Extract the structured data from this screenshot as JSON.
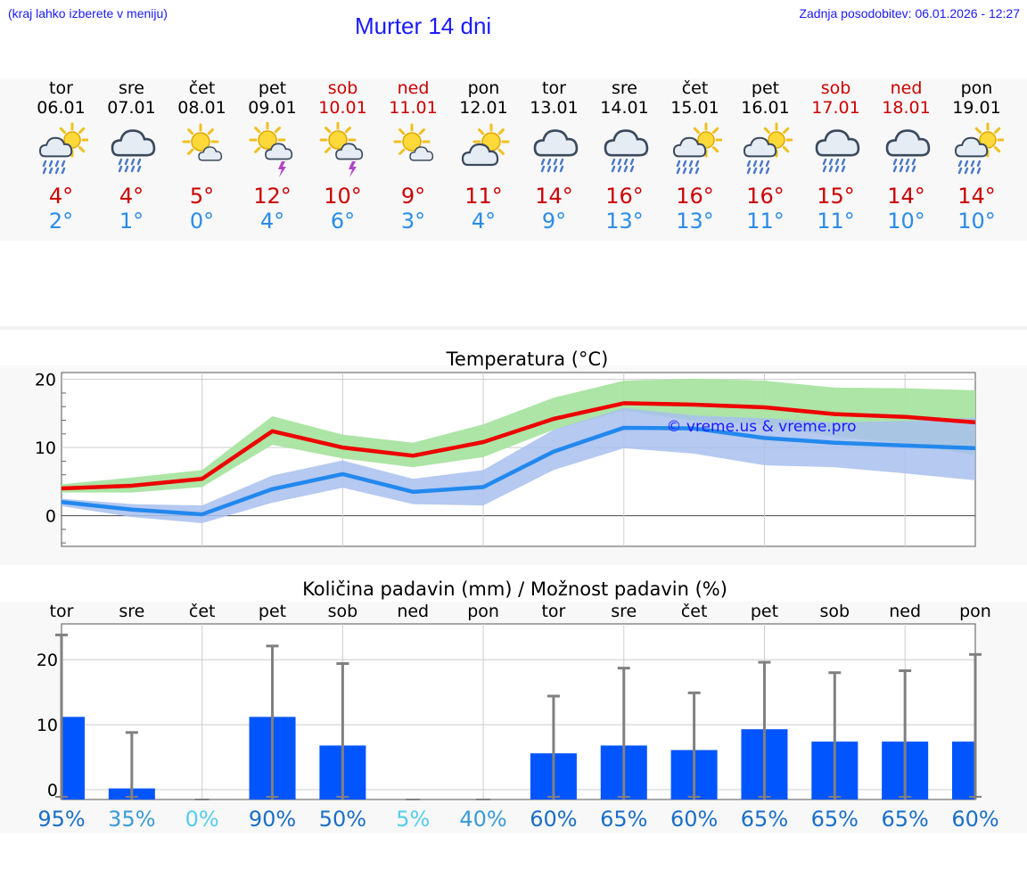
{
  "header": {
    "hint": "(kraj lahko izberete v meniju)",
    "title": "Murter 14 dni",
    "updated": "Zadnja posodobitev: 06.01.2026 - 12:27"
  },
  "days": [
    {
      "name": "tor",
      "date": "06.01",
      "icon": "sun-cloud-rain-icon",
      "max": "4°",
      "min": "2°",
      "weekend": false
    },
    {
      "name": "sre",
      "date": "07.01",
      "icon": "cloud-rain-icon",
      "max": "4°",
      "min": "1°",
      "weekend": false
    },
    {
      "name": "čet",
      "date": "08.01",
      "icon": "sun-small-cloud-icon",
      "max": "5°",
      "min": "0°",
      "weekend": false
    },
    {
      "name": "pet",
      "date": "09.01",
      "icon": "sun-storm-icon",
      "max": "12°",
      "min": "4°",
      "weekend": false
    },
    {
      "name": "sob",
      "date": "10.01",
      "icon": "sun-storm-icon",
      "max": "10°",
      "min": "6°",
      "weekend": true
    },
    {
      "name": "ned",
      "date": "11.01",
      "icon": "sun-small-cloud-icon",
      "max": "9°",
      "min": "3°",
      "weekend": true
    },
    {
      "name": "pon",
      "date": "12.01",
      "icon": "sun-cloud-icon",
      "max": "11°",
      "min": "4°",
      "weekend": false
    },
    {
      "name": "tor",
      "date": "13.01",
      "icon": "cloud-rain-icon",
      "max": "14°",
      "min": "9°",
      "weekend": false
    },
    {
      "name": "sre",
      "date": "14.01",
      "icon": "cloud-rain-icon",
      "max": "16°",
      "min": "13°",
      "weekend": false
    },
    {
      "name": "čet",
      "date": "15.01",
      "icon": "sun-cloud-rain-icon",
      "max": "16°",
      "min": "13°",
      "weekend": false
    },
    {
      "name": "pet",
      "date": "16.01",
      "icon": "sun-cloud-rain-icon",
      "max": "16°",
      "min": "11°",
      "weekend": false
    },
    {
      "name": "sob",
      "date": "17.01",
      "icon": "cloud-rain-icon",
      "max": "15°",
      "min": "11°",
      "weekend": true
    },
    {
      "name": "ned",
      "date": "18.01",
      "icon": "cloud-rain-icon",
      "max": "14°",
      "min": "10°",
      "weekend": true
    },
    {
      "name": "pon",
      "date": "19.01",
      "icon": "sun-cloud-rain-icon",
      "max": "14°",
      "min": "10°",
      "weekend": false
    }
  ],
  "colors": {
    "max": "#ee0000",
    "min": "#2288ee",
    "band_max": "#a8e4a0",
    "band_min": "#a8c0ee",
    "bar": "#0055ff",
    "whisker": "#808080"
  },
  "chart_data": [
    {
      "type": "line",
      "title": "Temperatura (°C)",
      "watermark": "© vreme.us & vreme.pro",
      "categories": [
        "tor",
        "sre",
        "čet",
        "pet",
        "sob",
        "ned",
        "pon",
        "tor",
        "sre",
        "čet",
        "pet",
        "sob",
        "ned",
        "pon"
      ],
      "ylim": [
        -4.5,
        21
      ],
      "yticks": [
        0,
        10,
        20
      ],
      "series": [
        {
          "name": "max",
          "values": [
            4,
            4.4,
            5.4,
            12.4,
            10,
            8.8,
            10.8,
            14.2,
            16.5,
            16.3,
            15.9,
            14.9,
            14.5,
            13.7
          ],
          "band_low": [
            3.4,
            3.4,
            4.2,
            10.4,
            8.4,
            7.1,
            8.6,
            12.6,
            15.4,
            13.9,
            13.3,
            11.6,
            10.6,
            8.9
          ],
          "band_high": [
            4.6,
            5.6,
            6.7,
            14.6,
            11.9,
            10.7,
            13.4,
            17.3,
            19.8,
            20.1,
            19.8,
            18.8,
            18.7,
            18.4
          ]
        },
        {
          "name": "min",
          "values": [
            2,
            0.9,
            0.2,
            3.9,
            6.1,
            3.5,
            4.2,
            9.4,
            12.9,
            12.8,
            11.4,
            10.7,
            10.3,
            9.9
          ],
          "band_low": [
            1.4,
            -0.2,
            -1.1,
            1.9,
            4.1,
            1.7,
            1.5,
            6.7,
            9.9,
            9.1,
            7.4,
            7.1,
            6.2,
            5.2
          ],
          "band_high": [
            2.5,
            1.7,
            1.5,
            5.9,
            8.1,
            5.4,
            6.7,
            12.6,
            15.8,
            14.7,
            14.3,
            13.7,
            13.9,
            14.4
          ]
        }
      ]
    },
    {
      "type": "bar",
      "title": "Količina padavin (mm) / Možnost padavin (%)",
      "categories": [
        "tor",
        "sre",
        "čet",
        "pet",
        "sob",
        "ned",
        "pon",
        "tor",
        "sre",
        "čet",
        "pet",
        "sob",
        "ned",
        "pon"
      ],
      "ylim": [
        -1.5,
        25.5
      ],
      "yticks": [
        0,
        10,
        20
      ],
      "values": [
        11.2,
        0.2,
        0,
        11.2,
        6.8,
        0,
        0,
        5.6,
        6.8,
        6.1,
        9.3,
        7.4,
        7.4,
        7.4
      ],
      "error_high": [
        23.8,
        8.8,
        0,
        22.1,
        19.4,
        0,
        0,
        14.4,
        18.7,
        14.9,
        19.6,
        18,
        18.3,
        20.8
      ],
      "probability": [
        "95%",
        "35%",
        "0%",
        "90%",
        "50%",
        "5%",
        "40%",
        "60%",
        "65%",
        "60%",
        "65%",
        "65%",
        "65%",
        "60%"
      ],
      "probability_colors": [
        "#1a6ec8",
        "#3a9ad8",
        "#55ccee",
        "#1a6ec8",
        "#1a6ec8",
        "#55ccee",
        "#3a9ad8",
        "#1a6ec8",
        "#1a6ec8",
        "#1a6ec8",
        "#1a6ec8",
        "#1a6ec8",
        "#1a6ec8",
        "#1a6ec8"
      ]
    }
  ]
}
